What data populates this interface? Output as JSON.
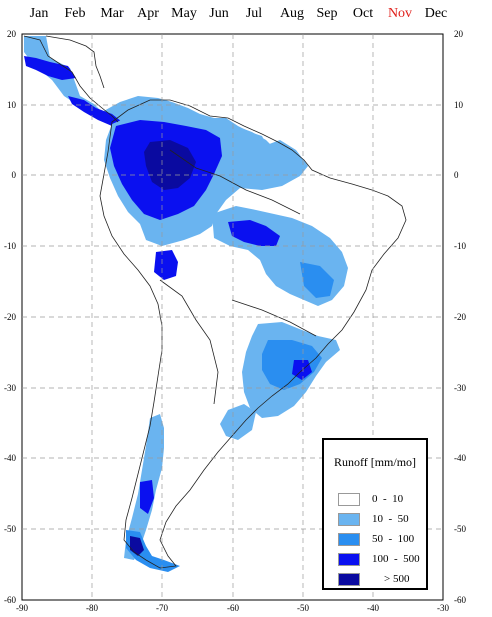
{
  "months": [
    {
      "label": "Jan",
      "active": false
    },
    {
      "label": "Feb",
      "active": false
    },
    {
      "label": "Mar",
      "active": false
    },
    {
      "label": "Apr",
      "active": false
    },
    {
      "label": "May",
      "active": false
    },
    {
      "label": "Jun",
      "active": false
    },
    {
      "label": "Jul",
      "active": false
    },
    {
      "label": "Aug",
      "active": false
    },
    {
      "label": "Sep",
      "active": false
    },
    {
      "label": "Oct",
      "active": false
    },
    {
      "label": "Nov",
      "active": true
    },
    {
      "label": "Dec",
      "active": false
    }
  ],
  "map": {
    "lon_ticks": [
      "-90",
      "-80",
      "-70",
      "-60",
      "-50",
      "-40",
      "-30"
    ],
    "lat_ticks_left": [
      "20",
      "10",
      "0",
      "-10",
      "-20",
      "-30",
      "-40",
      "-50",
      "-60"
    ],
    "lat_ticks_right": [
      "20",
      "10",
      "0",
      "-10",
      "-20",
      "-30",
      "-40",
      "-50",
      "-60"
    ],
    "lon_range": [
      -90,
      -30
    ],
    "lat_range": [
      -60,
      20
    ],
    "gridlines": true
  },
  "legend": {
    "title": "Runoff [mm/mo]",
    "classes": [
      {
        "label": "0  -  10",
        "color": "#ffffff"
      },
      {
        "label": "10  -  50",
        "color": "#6ab4f0"
      },
      {
        "label": "50  -  100",
        "color": "#2a8ef0"
      },
      {
        "label": "100  -  500",
        "color": "#0a10f0"
      },
      {
        "label": "> 500",
        "color": "#0a0aa0"
      }
    ]
  }
}
